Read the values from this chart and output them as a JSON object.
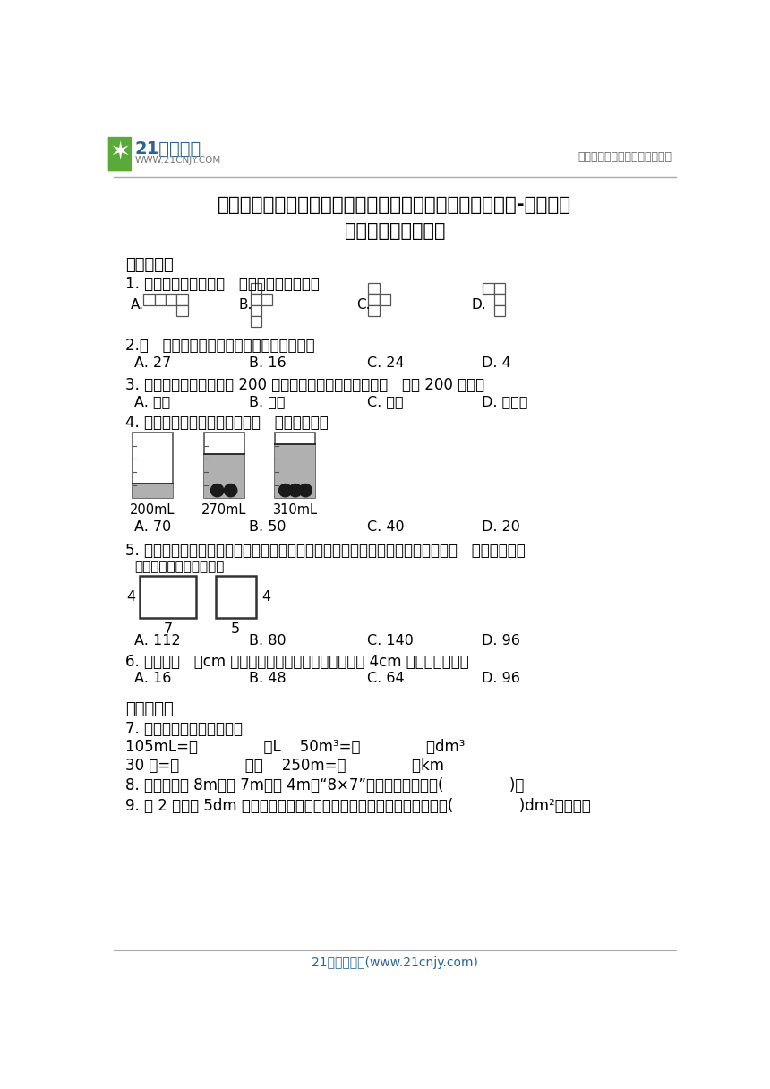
{
  "title_line1": "期末必考专题：长方体（一）和长方体（二）（单元测试）-小学数学",
  "title_line2": "五年级下册北师大版",
  "header_right": "中小学教育资源及组卷应用平台",
  "footer": "21世纪教育网(www.21cnjy.com)",
  "section1": "一、选择题",
  "q1": "1. 下面的平面图中，（   ）不能折成正方体。",
  "q2": "2.（   ）个小正方体可以拼成一个大正方体。",
  "q2_opts": [
    "A. 27",
    "B. 16",
    "C. 24",
    "D. 4"
  ],
  "q3": "3. 一个油壶，最多可装油 200 毫升，我们就说这个油壶的（   ）是 200 毫升。",
  "q3_opts": [
    "A. 质量",
    "B. 容积",
    "C. 体积",
    "D. 净含量"
  ],
  "q4": "4. 如图所示，大圆球的体积是（   ）立方厘米。",
  "q4_labels": [
    "200mL",
    "270mL",
    "310mL"
  ],
  "q4_opts": [
    "A. 70",
    "B. 50",
    "C. 40",
    "D. 20"
  ],
  "q5": "5. 如图，两个图形分别表示一个长方体的正面和右面，那么这个长方体的体积是（   ）立方厘米。",
  "q5_sub": "（图中的单位是：厘米）",
  "q5_opts": [
    "A. 112",
    "B. 80",
    "C. 140",
    "D. 96"
  ],
  "q6": "6. 一根长（   ）cm 的铁丝，刚好可以围成一个棱长为 4cm 的正方体框架。",
  "q6_opts": [
    "A. 16",
    "B. 48",
    "C. 64",
    "D. 96"
  ],
  "section2": "二、填空题",
  "q7": "7. 在括号里填上合适的数。",
  "q7_line1": "105mL=（              ）L    50m³=（              ）dm³",
  "q7_line2": "30 分=（              ）时    250m=（              ）km",
  "q8": "8. 一间教室长 8m，宽 7m，高 4m。“8×7”是计算这间教室的(              )。",
  "q9": "9. 把 2 个棱长 5dm 的小正方体拼成一个长方体，这个长方体的表面积是(              )dm²，体积是",
  "bg_color": "#ffffff",
  "logo_green": "#5aaa3a",
  "logo_blue": "#2a6496"
}
